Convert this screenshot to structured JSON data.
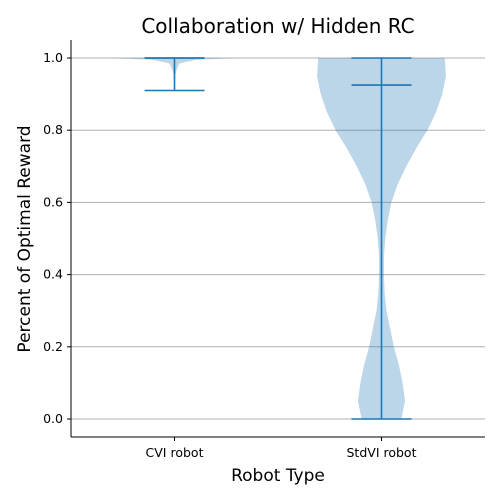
{
  "chart_data": {
    "type": "violin",
    "title": "Collaboration w/ Hidden RC",
    "xlabel": "Robot Type",
    "ylabel": "Percent of Optimal Reward",
    "categories": [
      "CVI robot",
      "StdVI robot"
    ],
    "ylim": [
      -0.05,
      1.05
    ],
    "yticks": [
      "0.0",
      "0.2",
      "0.4",
      "0.6",
      "0.8",
      "1.0"
    ],
    "grid": "horizontal",
    "color": "#1f77b4",
    "violin_fill": "#1f77b4",
    "violin_alpha": 0.3,
    "series": [
      {
        "category": "CVI robot",
        "min": 0.91,
        "max": 1.0,
        "median": 1.0,
        "density_profile": [
          [
            1.0,
            0.5
          ],
          [
            0.995,
            0.18
          ],
          [
            0.985,
            0.04
          ],
          [
            0.97,
            0.02
          ],
          [
            0.955,
            0.008
          ],
          [
            0.91,
            0.002
          ]
        ]
      },
      {
        "category": "StdVI robot",
        "min": 0.0,
        "max": 1.0,
        "median": 0.925,
        "density_profile": [
          [
            1.0,
            0.51
          ],
          [
            0.95,
            0.52
          ],
          [
            0.9,
            0.49
          ],
          [
            0.85,
            0.44
          ],
          [
            0.8,
            0.37
          ],
          [
            0.75,
            0.28
          ],
          [
            0.7,
            0.2
          ],
          [
            0.65,
            0.13
          ],
          [
            0.6,
            0.08
          ],
          [
            0.55,
            0.05
          ],
          [
            0.5,
            0.03
          ],
          [
            0.45,
            0.02
          ],
          [
            0.4,
            0.02
          ],
          [
            0.35,
            0.025
          ],
          [
            0.3,
            0.04
          ],
          [
            0.25,
            0.07
          ],
          [
            0.2,
            0.1
          ],
          [
            0.15,
            0.14
          ],
          [
            0.1,
            0.17
          ],
          [
            0.05,
            0.19
          ],
          [
            0.0,
            0.16
          ]
        ]
      }
    ]
  }
}
